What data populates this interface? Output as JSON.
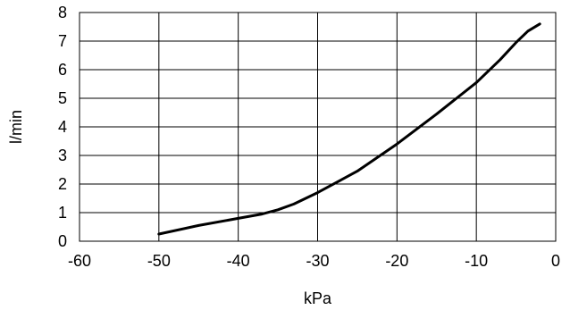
{
  "chart_data": {
    "type": "line",
    "title": "",
    "xlabel": "kPa",
    "ylabel": "l/min",
    "xlim": [
      -60,
      0
    ],
    "ylim": [
      0,
      8
    ],
    "x_ticks": [
      -60,
      -50,
      -40,
      -30,
      -20,
      -10,
      0
    ],
    "y_ticks": [
      0,
      1,
      2,
      3,
      4,
      5,
      6,
      7,
      8
    ],
    "x_tick_labels": [
      "-60",
      "-50",
      "-40",
      "-30",
      "-20",
      "-10",
      "0"
    ],
    "y_tick_labels": [
      "0",
      "1",
      "2",
      "3",
      "4",
      "5",
      "6",
      "7",
      "8"
    ],
    "grid": true,
    "legend": "none",
    "line_color": "#000000",
    "series": [
      {
        "x": [
          -50,
          -45,
          -40,
          -37,
          -35,
          -33,
          -30,
          -25,
          -20,
          -15,
          -10,
          -7,
          -5,
          -3.5,
          -2
        ],
        "values": [
          0.25,
          0.55,
          0.8,
          0.95,
          1.1,
          1.3,
          1.7,
          2.45,
          3.4,
          4.45,
          5.55,
          6.35,
          6.95,
          7.35,
          7.6
        ]
      }
    ]
  }
}
